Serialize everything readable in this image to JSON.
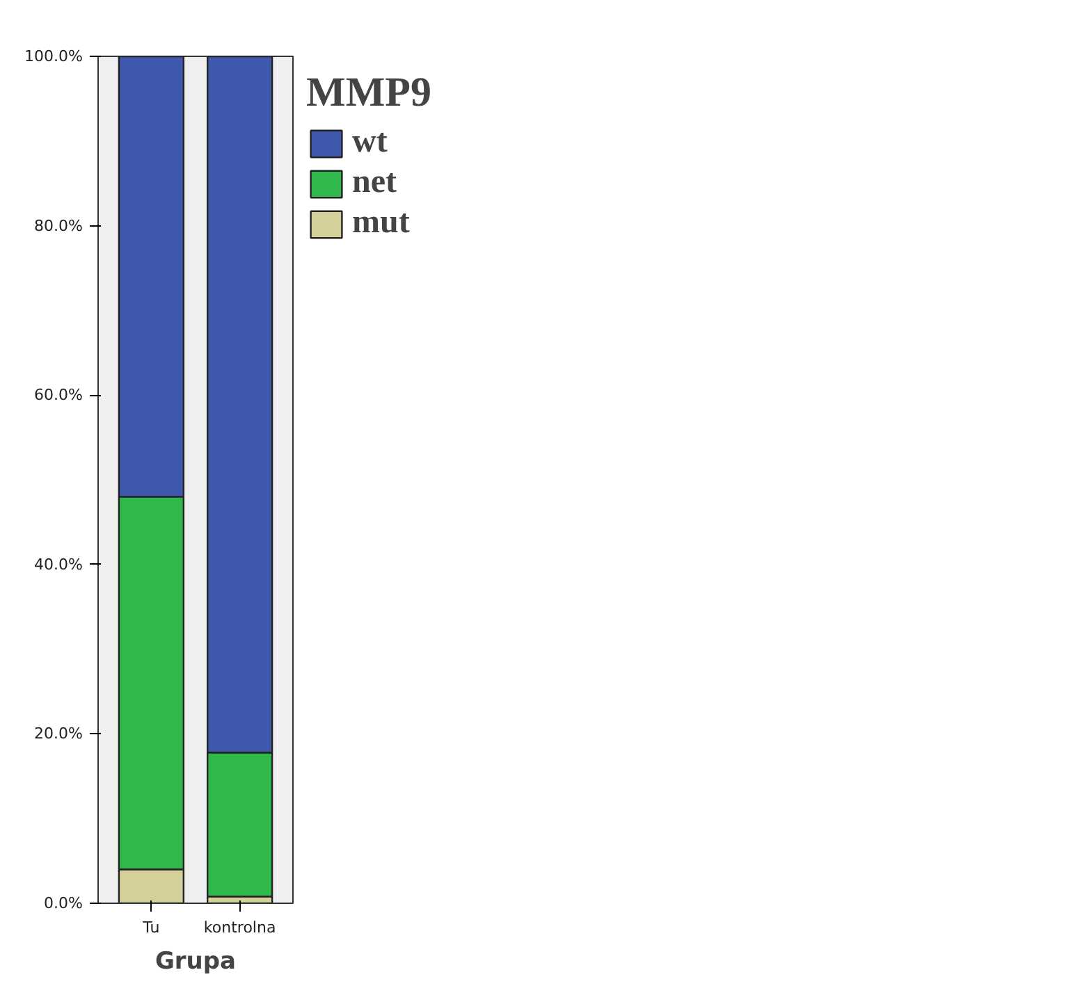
{
  "chart_data": {
    "type": "bar",
    "stacked": true,
    "categories": [
      "Tu",
      "kontrolna"
    ],
    "xlabel": "Grupa",
    "legend_title": "MMP9",
    "series": [
      {
        "name": "mut",
        "color": "#d5d09a",
        "values": [
          4,
          0.8
        ]
      },
      {
        "name": "net",
        "color": "#31b84c",
        "values": [
          44,
          17
        ]
      },
      {
        "name": "wt",
        "color": "#3e58ac",
        "values": [
          52,
          82.2
        ]
      }
    ],
    "ylim": [
      0,
      100
    ],
    "yticks": [
      {
        "value": 0,
        "label": "0.0%"
      },
      {
        "value": 20,
        "label": "20.0%"
      },
      {
        "value": 40,
        "label": "40.0%"
      },
      {
        "value": 60,
        "label": "60.0%"
      },
      {
        "value": 80,
        "label": "80.0%"
      },
      {
        "value": 100,
        "label": "100.0%"
      }
    ],
    "grid": false,
    "legend": "top right"
  }
}
